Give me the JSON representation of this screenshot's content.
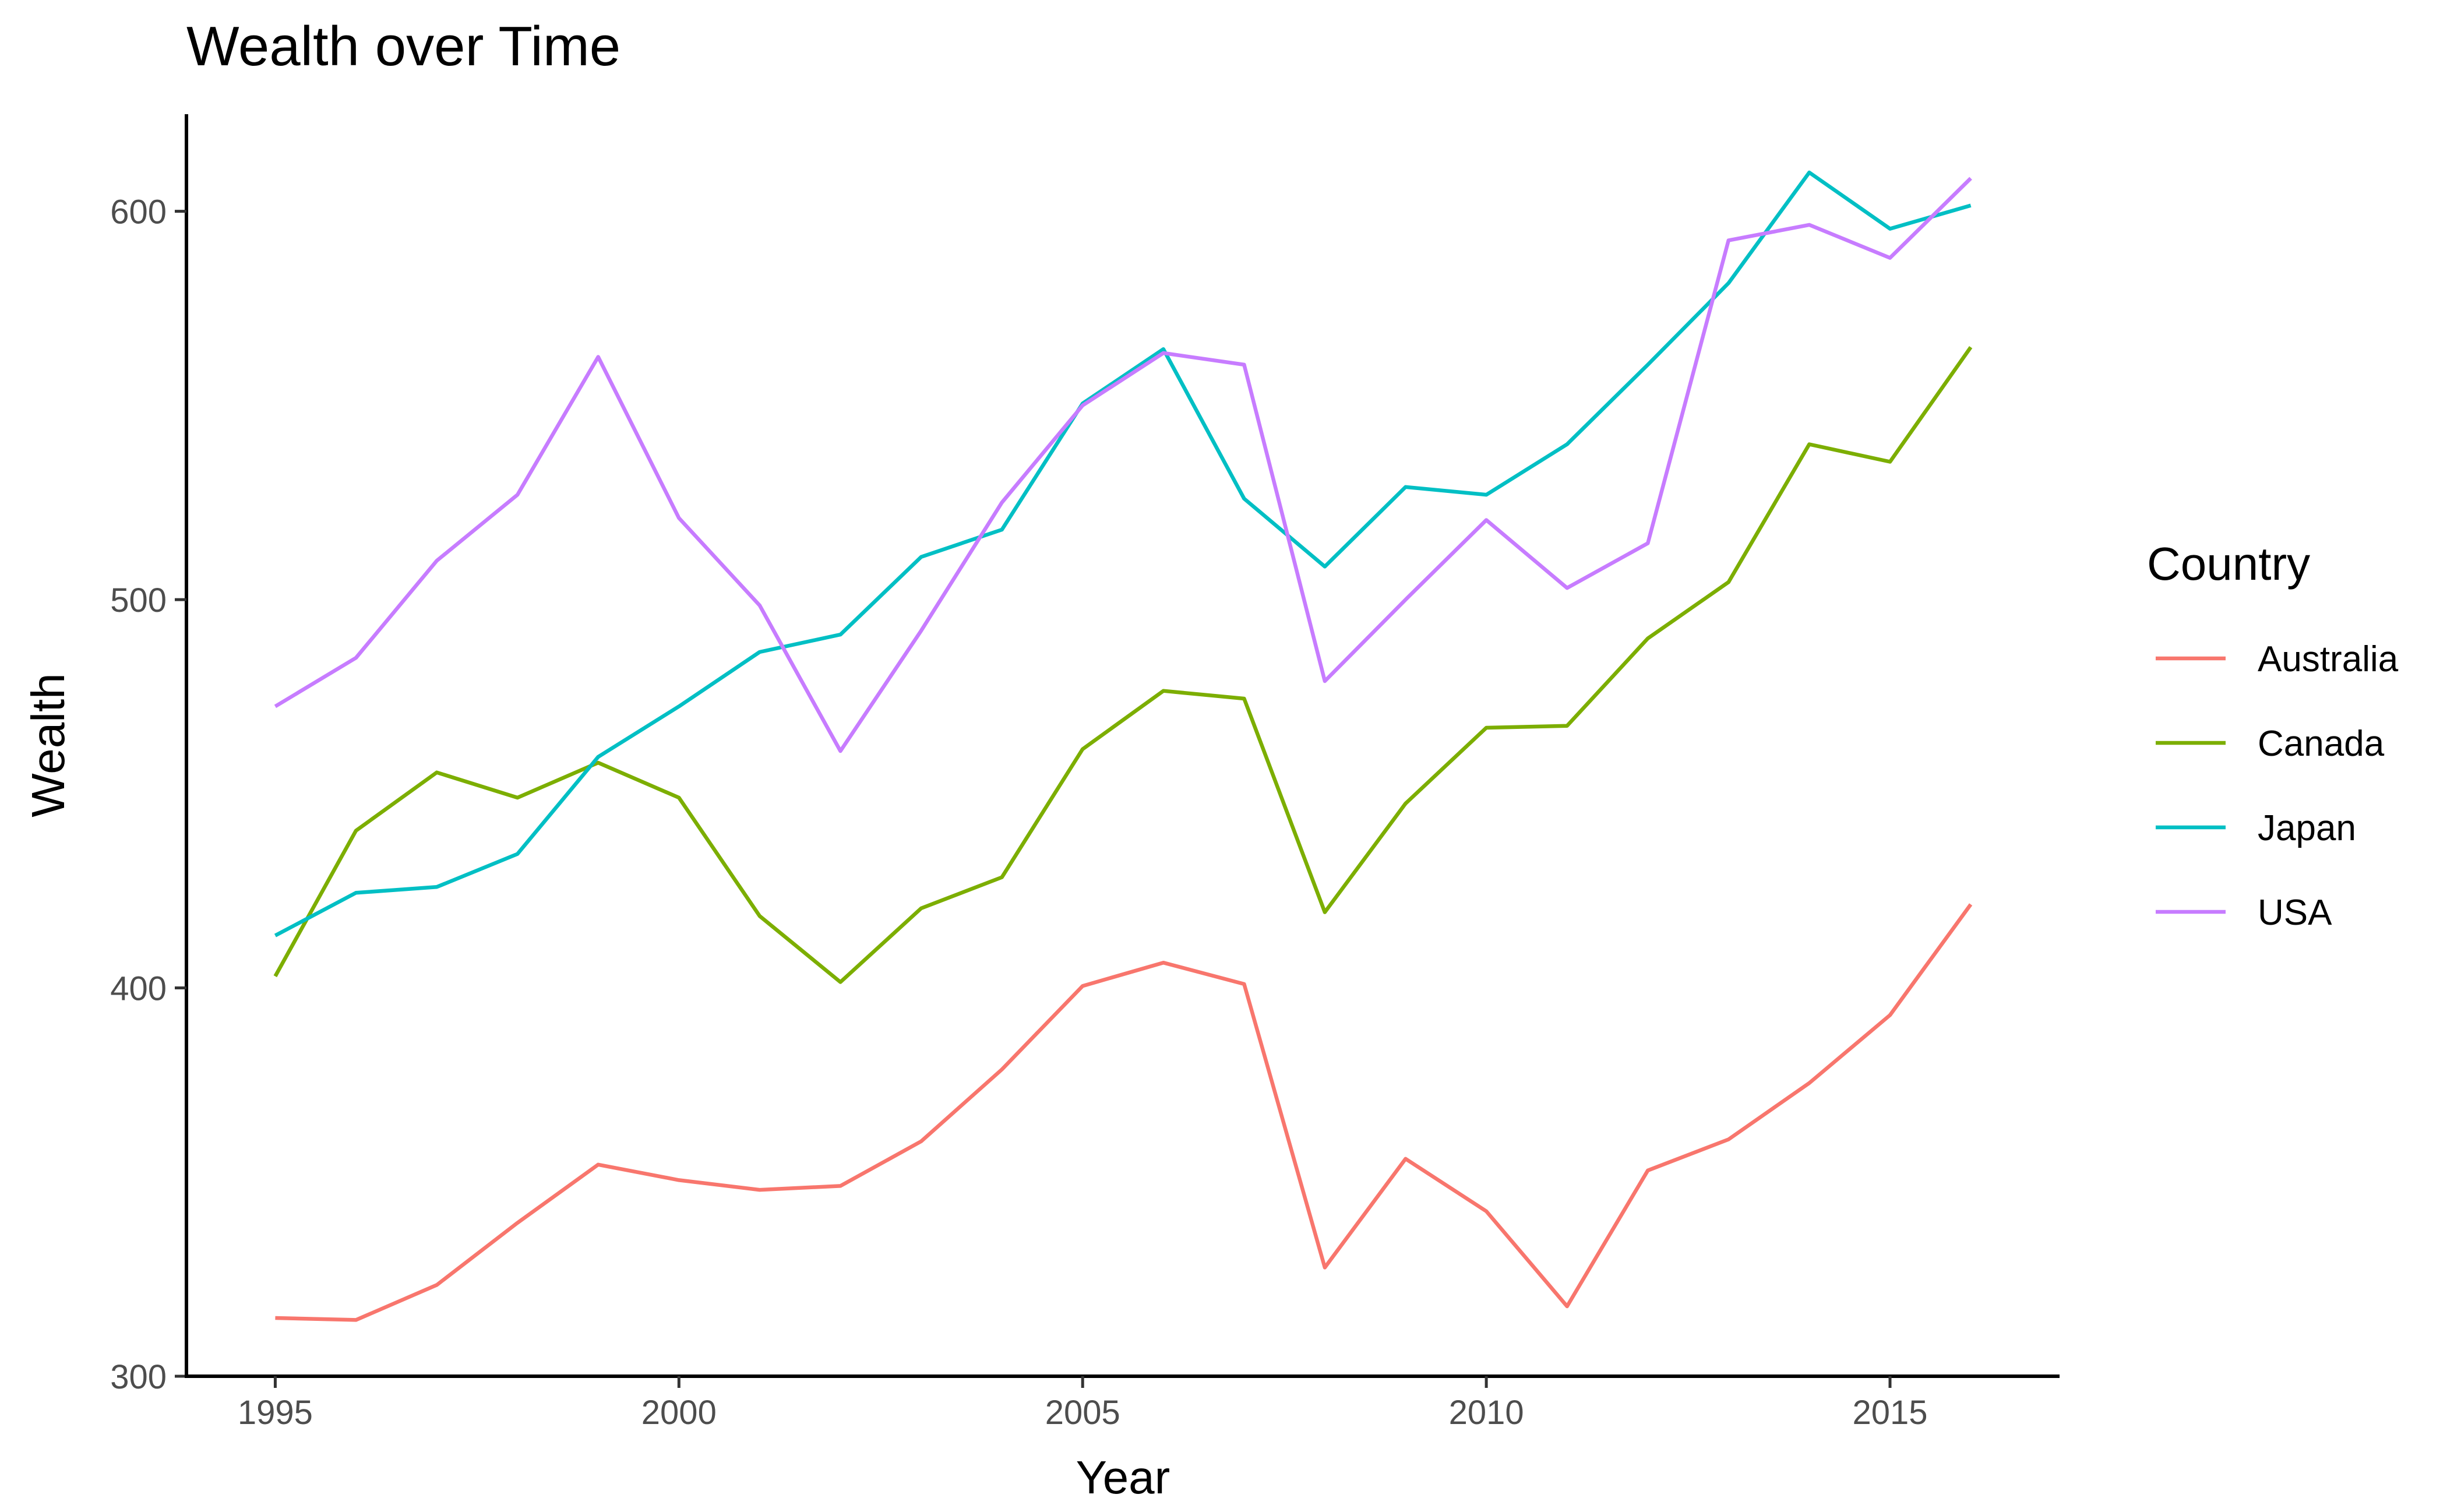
{
  "chart_data": {
    "type": "line",
    "title": "Wealth over Time",
    "xlabel": "Year",
    "ylabel": "Wealth",
    "xlim": [
      1993.9,
      2017.1
    ],
    "ylim": [
      300,
      625
    ],
    "x_ticks": [
      1995,
      2000,
      2005,
      2010,
      2015
    ],
    "y_ticks": [
      300,
      400,
      500,
      600
    ],
    "grid": false,
    "legend": {
      "title": "Country",
      "position": "right"
    },
    "x": [
      1995,
      1996,
      1997,
      1998,
      1999,
      2000,
      2001,
      2002,
      2003,
      2004,
      2005,
      2006,
      2007,
      2008,
      2009,
      2010,
      2011,
      2012,
      2013,
      2014,
      2015,
      2016
    ],
    "series": [
      {
        "name": "Australia",
        "color": "#F8766D",
        "values": [
          315,
          314.5,
          323.5,
          339.5,
          354.5,
          350.5,
          348,
          349,
          360.5,
          379,
          400.5,
          406.5,
          401,
          328,
          356,
          342.5,
          318,
          353,
          361,
          375.5,
          393,
          421.5
        ]
      },
      {
        "name": "Canada",
        "color": "#7CAE00",
        "values": [
          403,
          440.5,
          455.5,
          449,
          458,
          449,
          418.5,
          401.5,
          420.5,
          428.5,
          461.5,
          476.5,
          474.5,
          419.5,
          447.5,
          467,
          467.5,
          490,
          504.5,
          540,
          535.5,
          565
        ]
      },
      {
        "name": "Japan",
        "color": "#00BFC4",
        "values": [
          413.5,
          424.5,
          426,
          434.5,
          459.5,
          472.5,
          486.5,
          491,
          511,
          518,
          550.5,
          564.5,
          526,
          508.5,
          529,
          527,
          540,
          560.5,
          581.5,
          610,
          595.5,
          601.5
        ]
      },
      {
        "name": "USA",
        "color": "#C77CFF",
        "values": [
          472.5,
          485,
          510,
          527,
          562.5,
          521,
          498.5,
          461,
          492,
          525,
          550,
          563.5,
          560.5,
          479,
          500,
          520.5,
          503,
          514.5,
          592.5,
          596.5,
          588,
          608.5
        ]
      }
    ]
  }
}
